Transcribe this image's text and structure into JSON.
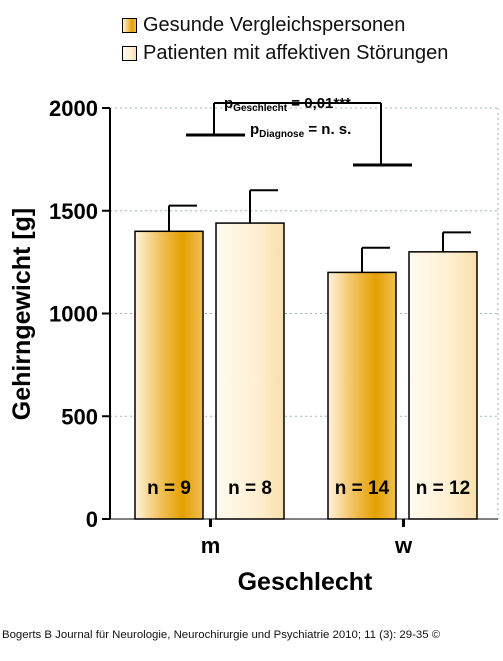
{
  "chart_data": {
    "type": "bar",
    "xlabel": "Geschlecht",
    "ylabel": "Gehirngewicht [g]",
    "ylim": [
      0,
      2000
    ],
    "yticks": [
      0,
      500,
      1000,
      1500,
      2000
    ],
    "grid": true,
    "legend_position": "top",
    "categories": [
      "m",
      "w"
    ],
    "series": [
      {
        "name": "Gesunde Vergleichspersonen",
        "color": "#e8a400",
        "values": [
          1400,
          1200
        ],
        "errors": [
          125,
          120
        ],
        "n_labels": [
          "n = 9",
          "n = 14"
        ]
      },
      {
        "name": "Patienten mit affektiven Störungen",
        "color": "#fff0d4",
        "values": [
          1440,
          1300
        ],
        "errors": [
          160,
          95
        ],
        "n_labels": [
          "n = 8",
          "n = 12"
        ]
      }
    ],
    "annotations": {
      "p_sex_main": "p",
      "p_sex_sub": "Geschlecht",
      "p_sex_value": " = 0,01***",
      "p_diag_main": "p",
      "p_diag_sub": "Diagnose",
      "p_diag_value": " = n. s."
    }
  },
  "credit": "Bogerts B Journal für Neurologie, Neurochirurgie und Psychiatrie 2010; 11 (3): 29-35 ©"
}
